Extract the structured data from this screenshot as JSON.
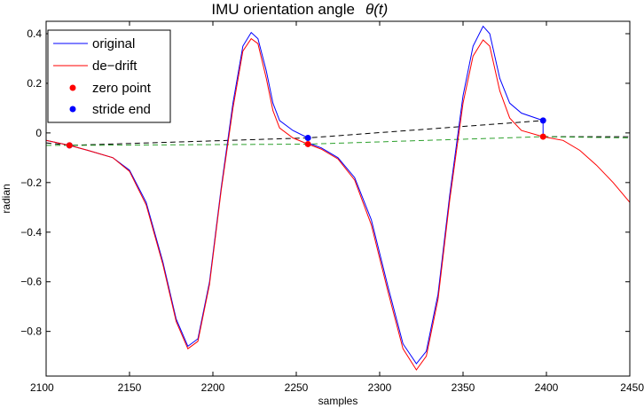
{
  "chart_data": {
    "type": "line",
    "title": "IMU orientation angle",
    "title_math": "θ(t)",
    "xlabel": "samples",
    "ylabel": "radian",
    "xlim": [
      2100,
      2450
    ],
    "ylim": [
      -0.98,
      0.45
    ],
    "xticks": [
      2100,
      2150,
      2200,
      2250,
      2300,
      2350,
      2400,
      2450
    ],
    "yticks": [
      -0.8,
      -0.6,
      -0.4,
      -0.2,
      0,
      0.2,
      0.4
    ],
    "ytick_labels": [
      "−0.8",
      "−0.6",
      "−0.4",
      "−0.2",
      "0",
      "0.2",
      "0.4"
    ],
    "grid": false,
    "legend_position": "top-left",
    "legend": [
      {
        "label": "original",
        "kind": "line",
        "color": "#0000ff"
      },
      {
        "label": "de−drift",
        "kind": "line",
        "color": "#ff0000"
      },
      {
        "label": "zero point",
        "kind": "marker",
        "color": "#ff0000"
      },
      {
        "label": "stride end",
        "kind": "marker",
        "color": "#0000ff"
      }
    ],
    "series": [
      {
        "name": "original",
        "color": "#0000ff",
        "points": [
          [
            2100,
            -0.03
          ],
          [
            2114,
            -0.05
          ],
          [
            2125,
            -0.07
          ],
          [
            2140,
            -0.1
          ],
          [
            2150,
            -0.15
          ],
          [
            2160,
            -0.28
          ],
          [
            2170,
            -0.52
          ],
          [
            2178,
            -0.75
          ],
          [
            2185,
            -0.86
          ],
          [
            2191,
            -0.83
          ],
          [
            2198,
            -0.6
          ],
          [
            2205,
            -0.22
          ],
          [
            2212,
            0.12
          ],
          [
            2218,
            0.35
          ],
          [
            2223,
            0.405
          ],
          [
            2227,
            0.38
          ],
          [
            2232,
            0.25
          ],
          [
            2236,
            0.12
          ],
          [
            2240,
            0.05
          ],
          [
            2248,
            0.01
          ],
          [
            2257,
            -0.02
          ]
        ]
      },
      {
        "name": "original",
        "color": "#0000ff",
        "points": [
          [
            2257,
            -0.04
          ],
          [
            2265,
            -0.06
          ],
          [
            2275,
            -0.1
          ],
          [
            2285,
            -0.18
          ],
          [
            2295,
            -0.35
          ],
          [
            2305,
            -0.62
          ],
          [
            2314,
            -0.85
          ],
          [
            2322,
            -0.93
          ],
          [
            2328,
            -0.88
          ],
          [
            2335,
            -0.65
          ],
          [
            2342,
            -0.25
          ],
          [
            2350,
            0.15
          ],
          [
            2356,
            0.35
          ],
          [
            2362,
            0.43
          ],
          [
            2366,
            0.4
          ],
          [
            2372,
            0.22
          ],
          [
            2378,
            0.12
          ],
          [
            2385,
            0.08
          ],
          [
            2398,
            0.05
          ]
        ]
      },
      {
        "name": "de−drift",
        "color": "#ff0000",
        "points": [
          [
            2100,
            -0.03
          ],
          [
            2114,
            -0.05
          ],
          [
            2125,
            -0.07
          ],
          [
            2140,
            -0.1
          ],
          [
            2150,
            -0.155
          ],
          [
            2160,
            -0.29
          ],
          [
            2170,
            -0.53
          ],
          [
            2178,
            -0.76
          ],
          [
            2185,
            -0.87
          ],
          [
            2191,
            -0.84
          ],
          [
            2198,
            -0.61
          ],
          [
            2205,
            -0.23
          ],
          [
            2212,
            0.1
          ],
          [
            2218,
            0.33
          ],
          [
            2223,
            0.38
          ],
          [
            2227,
            0.36
          ],
          [
            2232,
            0.22
          ],
          [
            2236,
            0.09
          ],
          [
            2240,
            0.02
          ],
          [
            2248,
            -0.02
          ],
          [
            2257,
            -0.045
          ],
          [
            2265,
            -0.065
          ],
          [
            2275,
            -0.105
          ],
          [
            2285,
            -0.19
          ],
          [
            2295,
            -0.37
          ],
          [
            2305,
            -0.64
          ],
          [
            2314,
            -0.87
          ],
          [
            2322,
            -0.955
          ],
          [
            2328,
            -0.9
          ],
          [
            2335,
            -0.67
          ],
          [
            2342,
            -0.27
          ],
          [
            2350,
            0.12
          ],
          [
            2356,
            0.31
          ],
          [
            2362,
            0.375
          ],
          [
            2366,
            0.35
          ],
          [
            2372,
            0.17
          ],
          [
            2378,
            0.06
          ],
          [
            2385,
            0.01
          ],
          [
            2398,
            -0.015
          ],
          [
            2410,
            -0.03
          ],
          [
            2420,
            -0.07
          ],
          [
            2430,
            -0.13
          ],
          [
            2440,
            -0.2
          ],
          [
            2450,
            -0.28
          ]
        ]
      }
    ],
    "dashed_lines": [
      {
        "color": "#000000",
        "points": [
          [
            2100,
            -0.04
          ],
          [
            2114,
            -0.05
          ],
          [
            2257,
            -0.02
          ],
          [
            2398,
            0.05
          ]
        ]
      },
      {
        "color": "#000000",
        "points": [
          [
            2398,
            -0.015
          ],
          [
            2450,
            -0.015
          ]
        ]
      },
      {
        "color": "#2ca02c",
        "points": [
          [
            2100,
            -0.05
          ],
          [
            2114,
            -0.05
          ],
          [
            2257,
            -0.045
          ],
          [
            2398,
            -0.015
          ],
          [
            2450,
            -0.02
          ]
        ]
      }
    ],
    "connectors": [
      {
        "color": "#0000ff",
        "points": [
          [
            2398,
            0.05
          ],
          [
            2398,
            -0.015
          ]
        ]
      }
    ],
    "zero_points": [
      [
        2114,
        -0.05
      ],
      [
        2257,
        -0.045
      ],
      [
        2398,
        -0.015
      ]
    ],
    "stride_ends": [
      [
        2114,
        -0.05
      ],
      [
        2257,
        -0.02
      ],
      [
        2398,
        0.05
      ]
    ]
  }
}
